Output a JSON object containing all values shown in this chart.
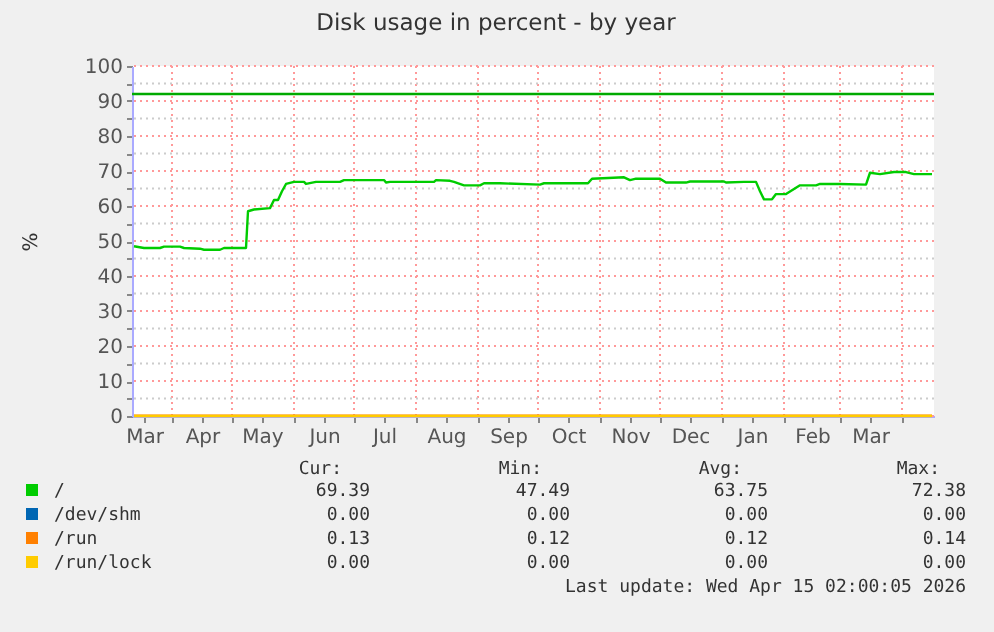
{
  "chart_data": {
    "type": "line",
    "title": "Disk usage in percent - by year",
    "ylabel": "%",
    "xlim": [
      "2025-03-12",
      "2026-04-17"
    ],
    "xticks": [
      {
        "value": "2025-03-18",
        "label": "Mar"
      },
      {
        "value": "2025-04-01",
        "label": null
      },
      {
        "value": "2025-04-16",
        "label": "Apr"
      },
      {
        "value": "2025-05-01",
        "label": null
      },
      {
        "value": "2025-05-16",
        "label": "May"
      },
      {
        "value": "2025-06-01",
        "label": null
      },
      {
        "value": "2025-06-16",
        "label": "Jun"
      },
      {
        "value": "2025-07-01",
        "label": null
      },
      {
        "value": "2025-07-16",
        "label": "Jul"
      },
      {
        "value": "2025-08-01",
        "label": null
      },
      {
        "value": "2025-08-16",
        "label": "Aug"
      },
      {
        "value": "2025-09-01",
        "label": null
      },
      {
        "value": "2025-09-16",
        "label": "Sep"
      },
      {
        "value": "2025-10-01",
        "label": null
      },
      {
        "value": "2025-10-16",
        "label": "Oct"
      },
      {
        "value": "2025-11-01",
        "label": null
      },
      {
        "value": "2025-11-16",
        "label": "Nov"
      },
      {
        "value": "2025-12-01",
        "label": null
      },
      {
        "value": "2025-12-16",
        "label": "Dec"
      },
      {
        "value": "2026-01-01",
        "label": null
      },
      {
        "value": "2026-01-16",
        "label": "Jan"
      },
      {
        "value": "2026-02-01",
        "label": null
      },
      {
        "value": "2026-02-15",
        "label": "Feb"
      },
      {
        "value": "2026-03-01",
        "label": null
      },
      {
        "value": "2026-03-16",
        "label": "Mar"
      },
      {
        "value": "2026-04-01",
        "label": null
      }
    ],
    "ylim": [
      0,
      100
    ],
    "yticks": [
      0,
      {
        "value": 5,
        "label": null
      },
      10,
      {
        "value": 15,
        "label": null
      },
      20,
      {
        "value": 25,
        "label": null
      },
      30,
      {
        "value": 35,
        "label": null
      },
      40,
      {
        "value": 45,
        "label": null
      },
      50,
      {
        "value": 55,
        "label": null
      },
      60,
      {
        "value": 65,
        "label": null
      },
      70,
      {
        "value": 75,
        "label": null
      },
      80,
      {
        "value": 85,
        "label": null
      },
      90,
      {
        "value": 95,
        "label": null
      },
      100
    ],
    "grid": true,
    "legend": "bottom",
    "marker": "none",
    "line_style": "solid",
    "series": [
      {
        "name": "/",
        "color": "#00cc00",
        "x": [
          "2025-03-13",
          "2025-03-18",
          "2025-03-26",
          "2025-03-28",
          "2025-04-05",
          "2025-04-07",
          "2025-04-15",
          "2025-04-17",
          "2025-04-25",
          "2025-04-27",
          "2025-05-08",
          "2025-05-09",
          "2025-05-12",
          "2025-05-20",
          "2025-05-22",
          "2025-05-24",
          "2025-05-26",
          "2025-05-28",
          "2025-06-01",
          "2025-06-06",
          "2025-06-07",
          "2025-06-12",
          "2025-06-24",
          "2025-06-26",
          "2025-07-16",
          "2025-07-17",
          "2025-07-19",
          "2025-08-10",
          "2025-08-11",
          "2025-08-18",
          "2025-08-20",
          "2025-08-25",
          "2025-09-02",
          "2025-09-04",
          "2025-09-12",
          "2025-10-02",
          "2025-10-04",
          "2025-10-26",
          "2025-10-28",
          "2025-11-13",
          "2025-11-16",
          "2025-11-19",
          "2025-12-01",
          "2025-12-04",
          "2025-12-14",
          "2025-12-16",
          "2026-01-02",
          "2026-01-03",
          "2026-01-12",
          "2026-01-18",
          "2026-01-20",
          "2026-01-22",
          "2026-01-26",
          "2026-01-28",
          "2026-02-02",
          "2026-02-09",
          "2026-02-17",
          "2026-02-19",
          "2026-03-01",
          "2026-03-14",
          "2026-03-16",
          "2026-03-21",
          "2026-03-28",
          "2026-04-03",
          "2026-04-07",
          "2026-04-16"
        ],
        "values": [
          48.5,
          48.0,
          48.0,
          48.4,
          48.4,
          48.0,
          47.8,
          47.5,
          47.5,
          48.0,
          48.0,
          58.5,
          59.0,
          59.4,
          61.7,
          61.7,
          64.2,
          66.3,
          66.9,
          66.9,
          66.3,
          66.9,
          66.9,
          67.4,
          67.4,
          66.7,
          66.9,
          66.9,
          67.4,
          67.2,
          66.9,
          65.9,
          65.9,
          66.5,
          66.5,
          66.1,
          66.5,
          66.5,
          67.8,
          68.2,
          67.4,
          67.8,
          67.8,
          66.7,
          66.7,
          67.0,
          67.0,
          66.7,
          66.9,
          66.9,
          64.2,
          61.9,
          61.9,
          63.4,
          63.4,
          65.9,
          65.9,
          66.3,
          66.3,
          66.1,
          69.5,
          69.1,
          69.7,
          69.7,
          69.1,
          69.1
        ]
      },
      {
        "name": "/dev/shm",
        "color": "#0066b3"
      },
      {
        "name": "/run",
        "color": "#ff8000",
        "x": [
          "2025-03-13",
          "2026-04-16"
        ],
        "values": [
          0.1,
          0.1
        ]
      },
      {
        "name": "/run/lock",
        "color": "#ffcc00",
        "x": [
          "2025-03-13",
          "2026-04-16"
        ],
        "values": [
          0,
          0
        ]
      }
    ],
    "ref_lines": [
      {
        "axis": "y",
        "value": 92,
        "color": "#00aa00"
      }
    ],
    "annotations": [
      "Cur:",
      "Min:",
      "Avg:",
      "Max:",
      "69.39",
      "47.49",
      "63.75",
      "72.38",
      "0.00",
      "0.00",
      "0.00",
      "0.00",
      "0.13",
      "0.12",
      "0.12",
      "0.14",
      "0.00",
      "0.00",
      "0.00",
      "0.00",
      "Last update: Wed Apr 15 02:00:05 2026"
    ]
  }
}
